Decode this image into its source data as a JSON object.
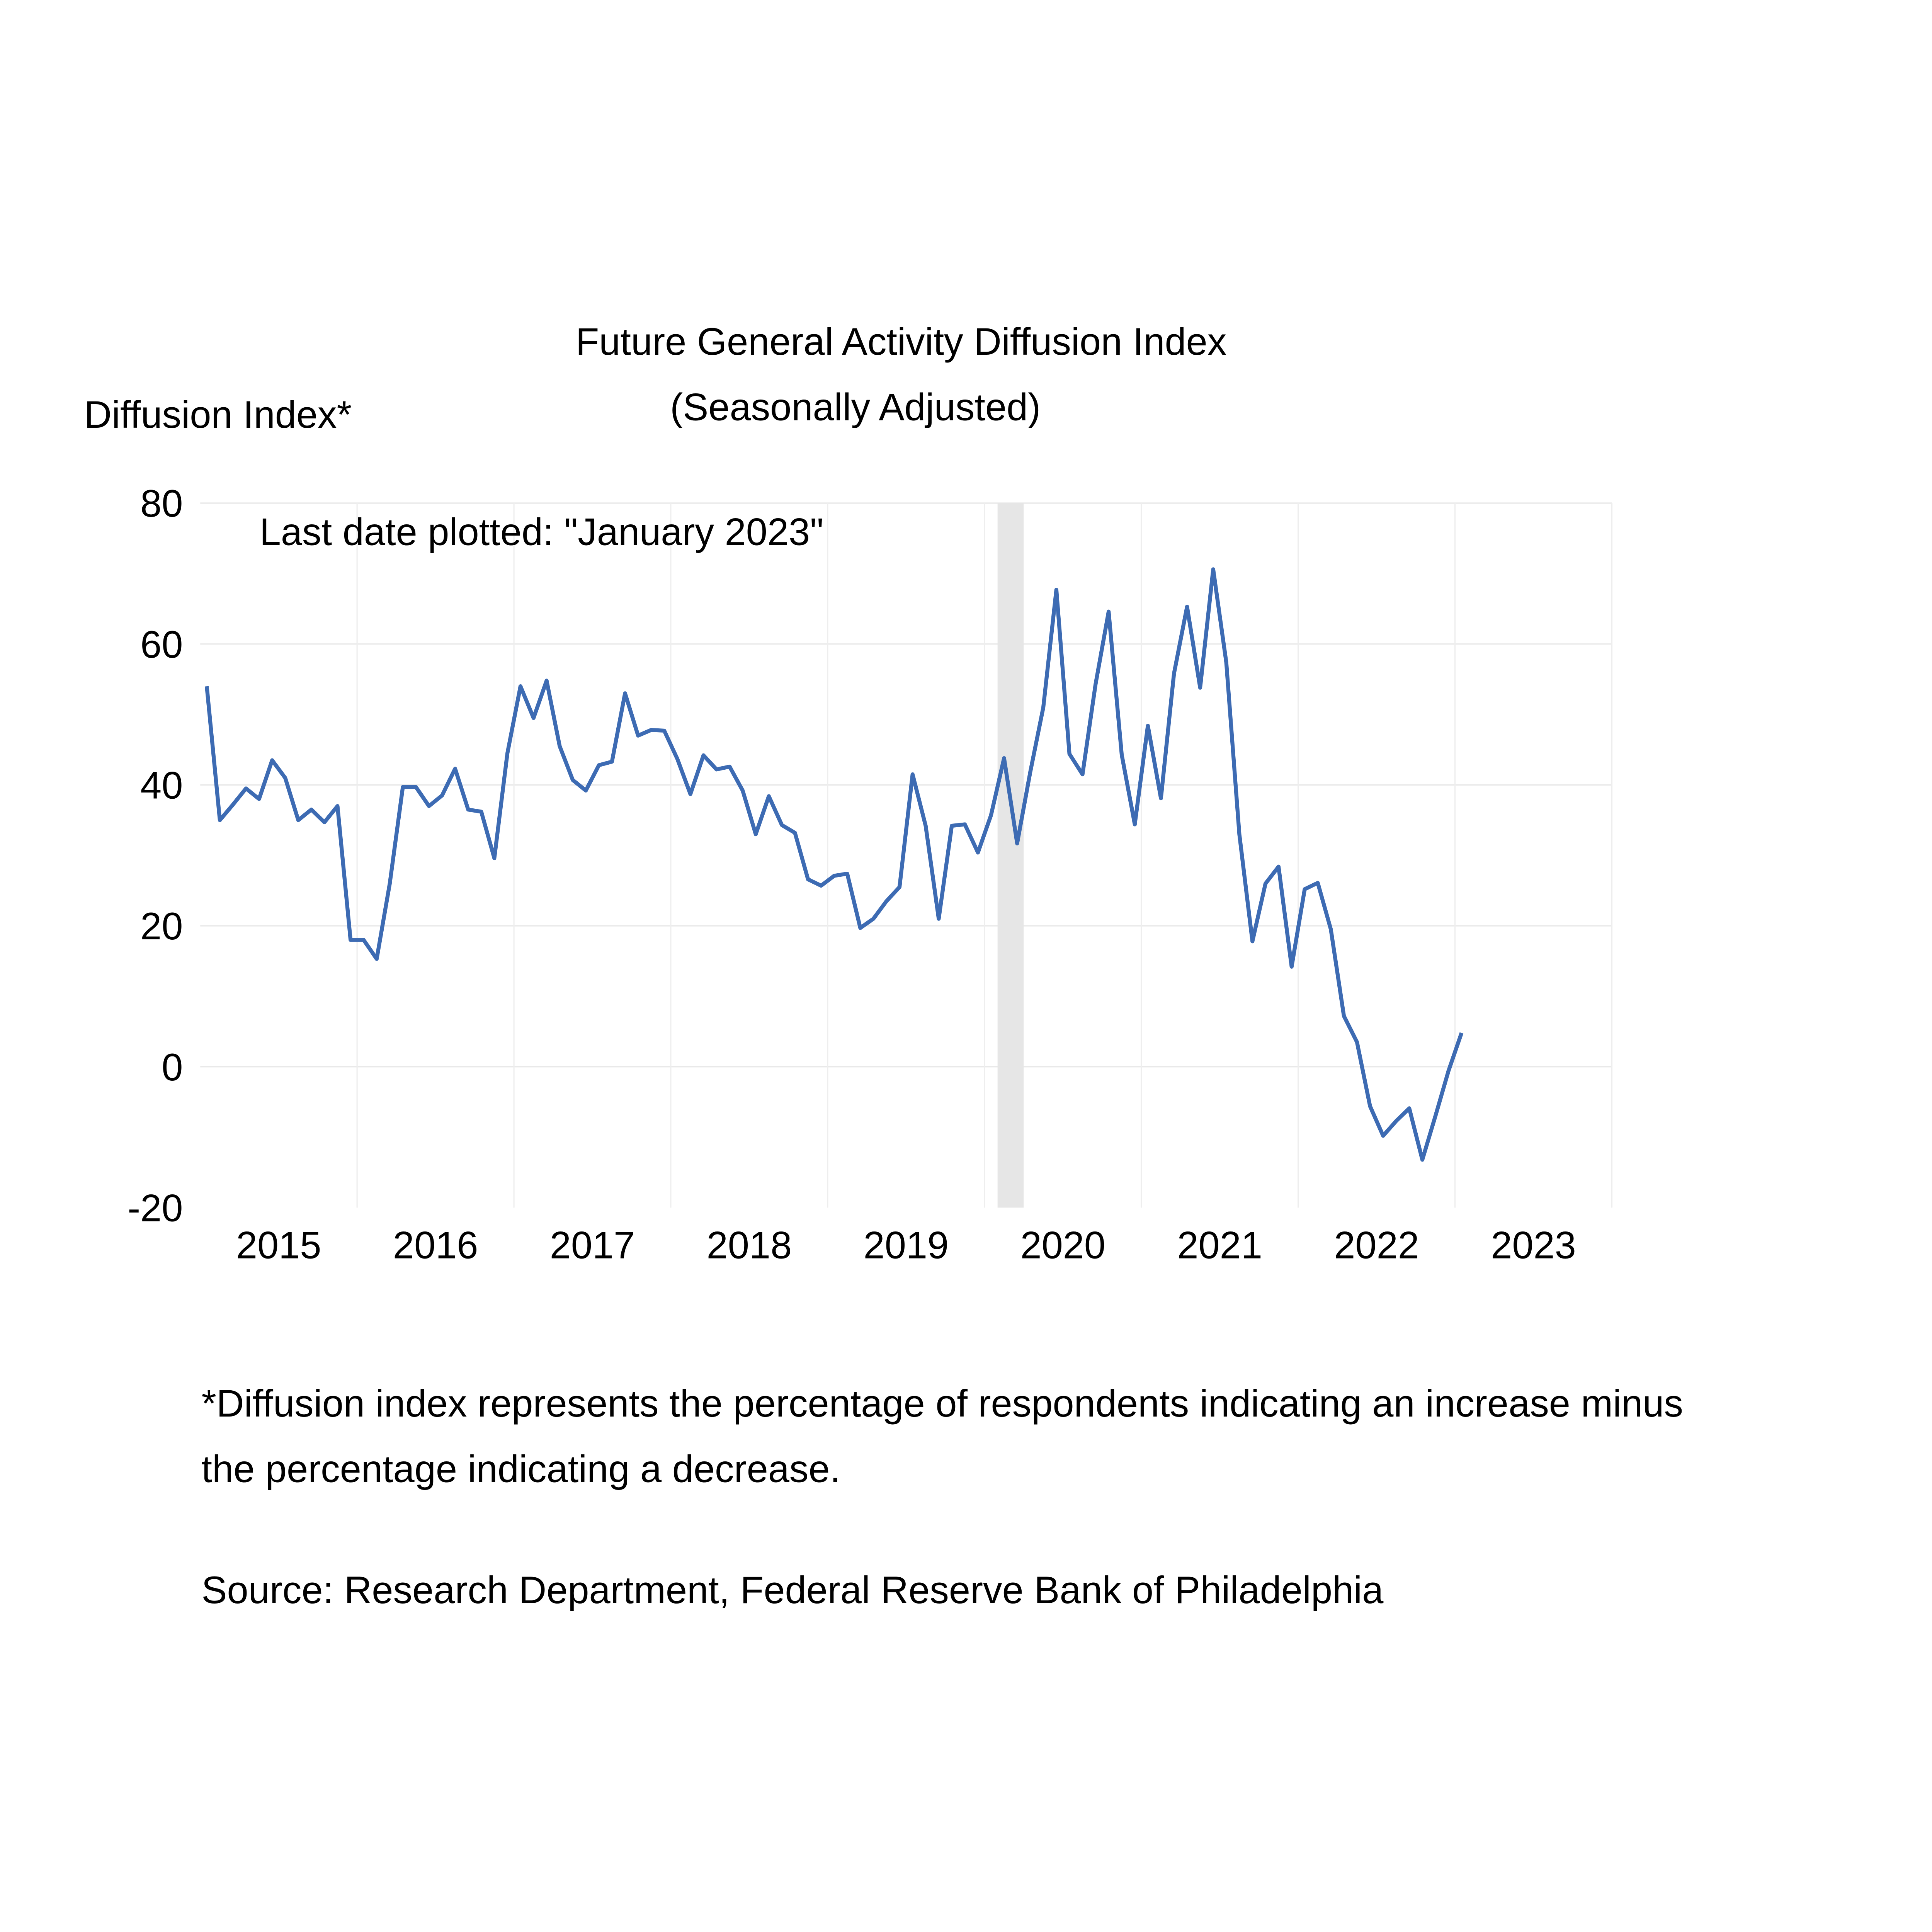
{
  "chart_data": {
    "type": "line",
    "title": "Future General Activity Diffusion Index",
    "subtitle": "(Seasonally Adjusted)",
    "ylabel": "Diffusion Index*",
    "annotation": "Last date plotted: \"January 2023\"",
    "ylim": [
      -20,
      80
    ],
    "yticks": [
      "80",
      "60",
      "40",
      "20",
      "0",
      "-20"
    ],
    "ytick_values": [
      80,
      60,
      40,
      20,
      0,
      -20
    ],
    "xticks": [
      "2015",
      "2016",
      "2017",
      "2018",
      "2019",
      "2020",
      "2021",
      "2022",
      "2023"
    ],
    "x_start": "January 2015",
    "x_end": "January 2023",
    "frequency": "monthly",
    "grid": true,
    "recession_shading": {
      "start": "February 2020",
      "end": "April 2020",
      "color": "#e6e6e6"
    },
    "series": [
      {
        "name": "Future General Activity",
        "color": "#3d6bb3",
        "values": [
          54,
          35,
          37.2,
          39.5,
          38,
          43.5,
          41,
          35,
          36.5,
          34.7,
          37,
          18,
          18,
          15.3,
          26,
          39.7,
          39.7,
          37,
          38.5,
          42.3,
          36.5,
          36.2,
          29.6,
          44.5,
          54,
          49.5,
          54.8,
          45.5,
          40.7,
          39.2,
          42.8,
          43.3,
          53,
          47,
          47.8,
          47.7,
          43.7,
          38.7,
          44.2,
          42.2,
          42.6,
          39.2,
          33,
          38.4,
          34.3,
          33.2,
          26.6,
          25.7,
          27.1,
          27.4,
          19.7,
          21,
          23.5,
          25.5,
          41.5,
          34.2,
          21,
          34.2,
          34.4,
          30.4,
          35.7,
          43.8,
          31.7,
          41.8,
          51,
          67.7,
          44.4,
          41.5,
          54.3,
          64.6,
          44.3,
          34.4,
          48.4,
          38.1,
          55.8,
          65.3,
          53.8,
          70.6,
          57.4,
          33,
          17.8,
          26,
          28.4,
          14.2,
          25.2,
          26.1,
          19.5,
          7.2,
          3.5,
          -5.6,
          -9.8,
          -7.7,
          -5.9,
          -13.2,
          -7,
          -0.6,
          4.8
        ]
      }
    ]
  },
  "footnote": {
    "line1": "*Diffusion index represents the percentage of respondents indicating an increase minus",
    "line2": "the percentage indicating a decrease.",
    "source": "Source: Research Department, Federal Reserve Bank of Philadelphia"
  }
}
